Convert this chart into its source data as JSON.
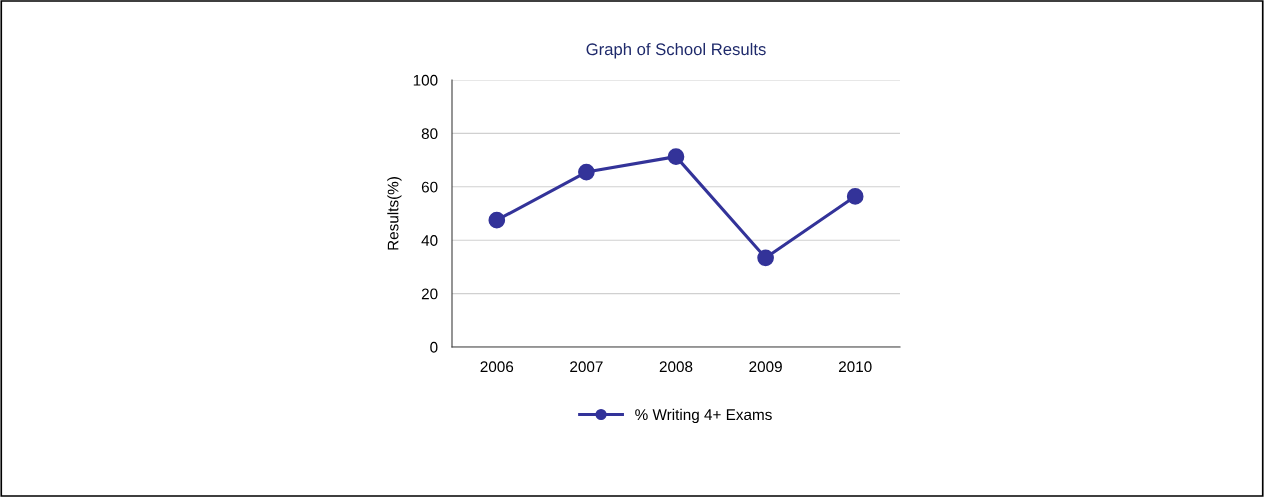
{
  "chart_data": {
    "type": "line",
    "title": "Graph of School Results",
    "ylabel": "Results(%)",
    "categories": [
      "2006",
      "2007",
      "2008",
      "2009",
      "2010"
    ],
    "series": [
      {
        "name": "% Writing 4+ Exams",
        "color": "#333399",
        "values": [
          47.5,
          65.5,
          71.3,
          33.4,
          56.4
        ]
      }
    ],
    "ylim": [
      0,
      100
    ],
    "yticks": [
      0,
      20,
      40,
      60,
      80,
      100
    ],
    "grid": "y",
    "legend": "bottom",
    "marker": "circle",
    "line_style": "solid"
  }
}
